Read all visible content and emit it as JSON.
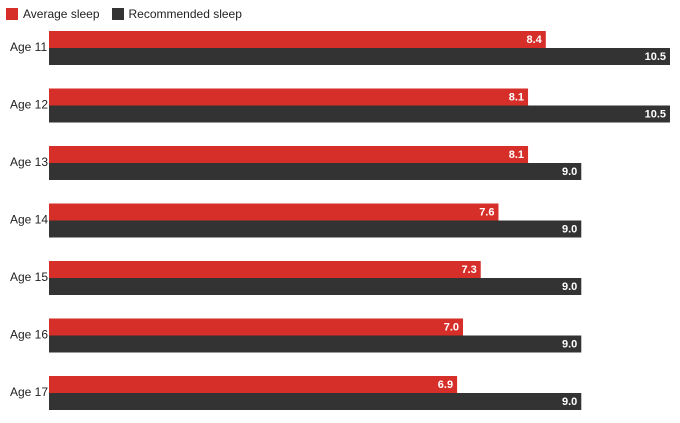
{
  "chart_data": {
    "type": "bar",
    "orientation": "horizontal",
    "categories": [
      "Age 11",
      "Age 12",
      "Age 13",
      "Age 14",
      "Age 15",
      "Age 16",
      "Age 17"
    ],
    "series": [
      {
        "name": "Average sleep",
        "values": [
          8.4,
          8.1,
          8.1,
          7.6,
          7.3,
          7.0,
          6.9
        ],
        "labels": [
          "8.4",
          "8.1",
          "8.1",
          "7.6",
          "7.3",
          "7.0",
          "6.9"
        ],
        "color": "#d62f2a"
      },
      {
        "name": "Recommended sleep",
        "values": [
          10.5,
          10.5,
          9.0,
          9.0,
          9.0,
          9.0,
          9.0
        ],
        "labels": [
          "10.5",
          "10.5",
          "9.0",
          "9.0",
          "9.0",
          "9.0",
          "9.0"
        ],
        "color": "#333333"
      }
    ],
    "xlim": [
      0,
      10.5
    ],
    "grid": false,
    "legend_position": "top-left"
  }
}
